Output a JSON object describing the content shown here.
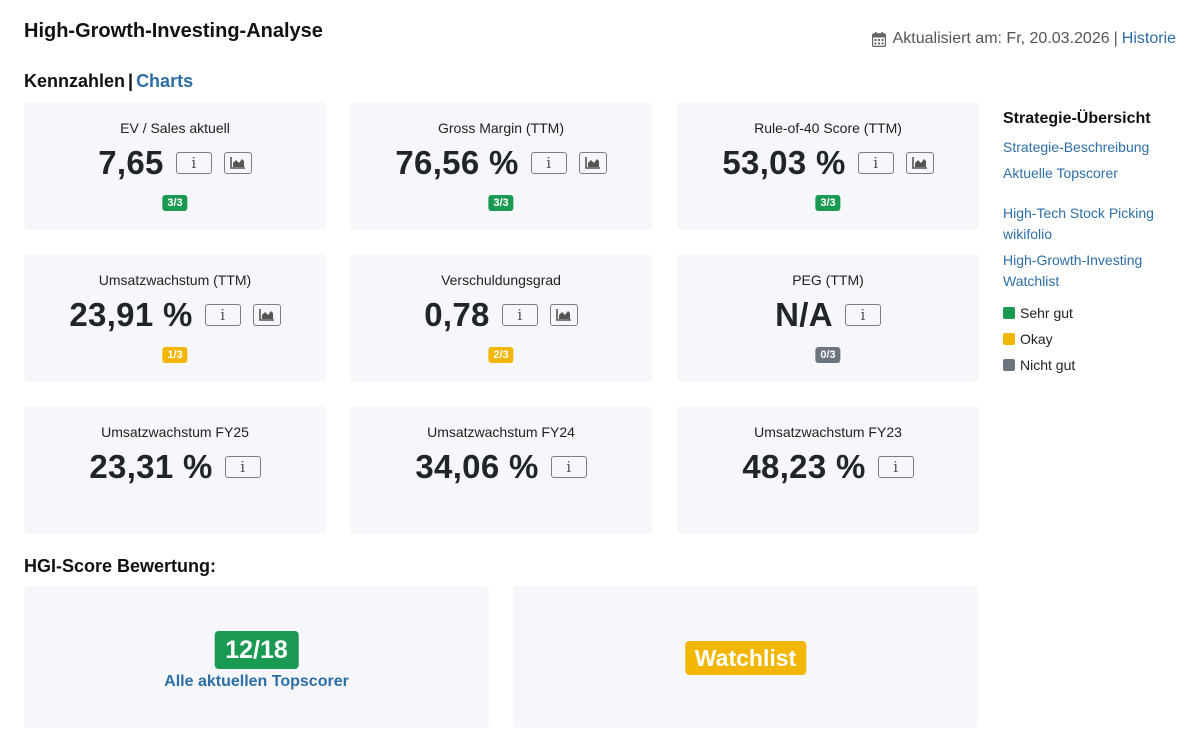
{
  "header": {
    "title": "High-Growth-Investing-Analyse",
    "updated_label": "Aktualisiert am: Fr, 20.03.2026",
    "history_link": "Historie"
  },
  "subheader": {
    "kennzahlen": "Kennzahlen",
    "separator": "|",
    "charts_link": "Charts"
  },
  "metrics": [
    {
      "label": "EV / Sales aktuell",
      "value": "7,65",
      "has_chart": true,
      "badge": "3/3",
      "badge_status": "good"
    },
    {
      "label": "Gross Margin (TTM)",
      "value": "76,56 %",
      "has_chart": true,
      "badge": "3/3",
      "badge_status": "good"
    },
    {
      "label": "Rule-of-40 Score (TTM)",
      "value": "53,03 %",
      "has_chart": true,
      "badge": "3/3",
      "badge_status": "good"
    },
    {
      "label": "Umsatzwachstum (TTM)",
      "value": "23,91 %",
      "has_chart": true,
      "badge": "1/3",
      "badge_status": "okay"
    },
    {
      "label": "Verschuldungsgrad",
      "value": "0,78",
      "has_chart": true,
      "badge": "2/3",
      "badge_status": "okay"
    },
    {
      "label": "PEG (TTM)",
      "value": "N/A",
      "has_chart": false,
      "badge": "0/3",
      "badge_status": "bad"
    },
    {
      "label": "Umsatzwachstum FY25",
      "value": "23,31 %",
      "has_chart": false
    },
    {
      "label": "Umsatzwachstum FY24",
      "value": "34,06 %",
      "has_chart": false
    },
    {
      "label": "Umsatzwachstum FY23",
      "value": "48,23 %",
      "has_chart": false
    }
  ],
  "info_glyph": "i",
  "sidebar": {
    "title": "Strategie-Übersicht",
    "links": [
      "Strategie-Beschreibung",
      "Aktuelle Topscorer"
    ],
    "links2": [
      {
        "line1": "High-Tech Stock Picking",
        "line2": "wikifolio"
      },
      {
        "line1": "High-Growth-Investing",
        "line2": "Watchlist"
      }
    ],
    "legend": [
      {
        "label": "Sehr gut",
        "color": "#1a9953"
      },
      {
        "label": "Okay",
        "color": "#f2b705"
      },
      {
        "label": "Nicht gut",
        "color": "#6c757d"
      }
    ]
  },
  "hgi": {
    "title": "HGI-Score Bewertung:",
    "score": "12/18",
    "topscorer_link": "Alle aktuellen Topscorer",
    "status": "Watchlist"
  },
  "colors": {
    "good": "#1a9953",
    "okay": "#f2b705",
    "bad": "#6c757d",
    "link": "#2e6ea6",
    "card_bg": "#f5f7fa"
  },
  "icons": [
    "calendar-icon",
    "info-icon",
    "chart-icon"
  ]
}
